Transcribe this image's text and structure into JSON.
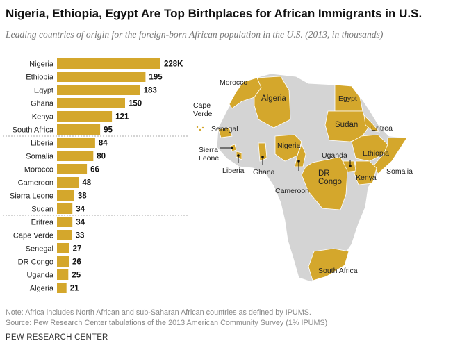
{
  "header": {
    "title": "Nigeria, Ethiopia, Egypt Are Top Birthplaces for African Immigrants in U.S.",
    "subtitle": "Leading countries of origin for the foreign-born African population in the U.S. (2013, in thousands)"
  },
  "chart_data": {
    "type": "bar",
    "orientation": "horizontal",
    "categories": [
      "Nigeria",
      "Ethiopia",
      "Egypt",
      "Ghana",
      "Kenya",
      "South Africa",
      "Liberia",
      "Somalia",
      "Morocco",
      "Cameroon",
      "Sierra Leone",
      "Sudan",
      "Eritrea",
      "Cape Verde",
      "Senegal",
      "DR Congo",
      "Uganda",
      "Algeria"
    ],
    "values": [
      228,
      195,
      183,
      150,
      121,
      95,
      84,
      80,
      66,
      48,
      38,
      34,
      34,
      33,
      27,
      26,
      25,
      21
    ],
    "value_labels": [
      "228K",
      "195",
      "183",
      "150",
      "121",
      "95",
      "84",
      "80",
      "66",
      "48",
      "38",
      "34",
      "34",
      "33",
      "27",
      "26",
      "25",
      "21"
    ],
    "group_separators_after": [
      5,
      11
    ],
    "xlim": [
      0,
      228
    ],
    "bar_color": "#d4a72c",
    "grid": false
  },
  "map": {
    "land_color": "#d4d4d4",
    "highlight_color": "#d4a72c",
    "labels": {
      "morocco": "Morocco",
      "algeria": "Algeria",
      "egypt": "Egypt",
      "cape_verde": "Cape\nVerde",
      "senegal": "Senegal",
      "sudan": "Sudan",
      "eritrea": "Eritrea",
      "sierra_leone": "Sierra\nLeone",
      "nigeria": "Nigeria",
      "ethiopia": "Ethiopia",
      "uganda": "Uganda",
      "liberia": "Liberia",
      "ghana": "Ghana",
      "somalia": "Somalia",
      "dr_congo": "DR\nCongo",
      "kenya": "Kenya",
      "cameroon": "Cameroon",
      "south_africa": "South Africa"
    }
  },
  "footer": {
    "note": "Note: Africa includes North African and sub-Saharan African countries as defined by IPUMS.",
    "source": "Source: Pew Research Center tabulations of the 2013 American Community Survey (1% IPUMS)",
    "brand": "PEW RESEARCH CENTER"
  }
}
